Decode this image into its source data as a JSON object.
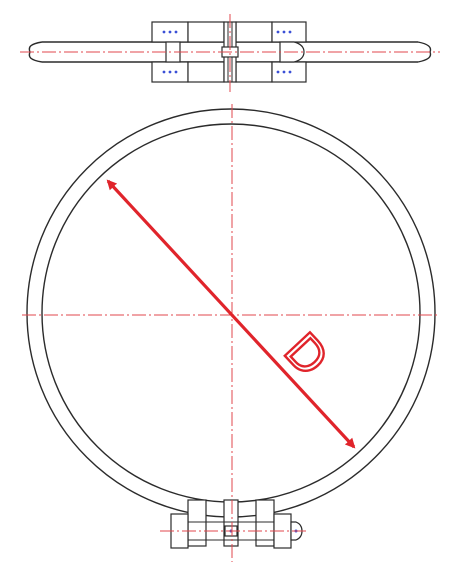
{
  "diagram": {
    "dimension_label": "D"
  },
  "colors": {
    "line": "#2b2b2b",
    "centerline": "#e0474c",
    "dimension": "#e0242b",
    "bolt_dots": "#3a4fd6",
    "label_stroke": "#e0242b"
  },
  "icons": [
    "pipe-clamp-top-view",
    "pipe-clamp-front-view",
    "bolt-icon",
    "dimension-arrow-icon"
  ]
}
